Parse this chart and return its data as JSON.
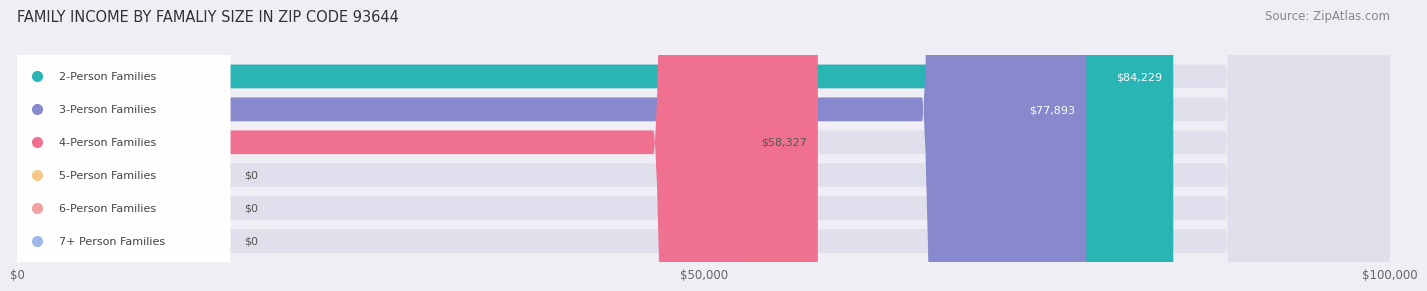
{
  "title": "FAMILY INCOME BY FAMALIY SIZE IN ZIP CODE 93644",
  "source": "Source: ZipAtlas.com",
  "categories": [
    "2-Person Families",
    "3-Person Families",
    "4-Person Families",
    "5-Person Families",
    "6-Person Families",
    "7+ Person Families"
  ],
  "values": [
    84229,
    77893,
    58327,
    0,
    0,
    0
  ],
  "bar_colors": [
    "#2ab5b5",
    "#8888cc",
    "#f07090",
    "#f5c88a",
    "#f0a0a0",
    "#a0b8e8"
  ],
  "label_colors": [
    "#ffffff",
    "#ffffff",
    "#555555",
    "#555555",
    "#555555",
    "#555555"
  ],
  "value_labels": [
    "$84,229",
    "$77,893",
    "$58,327",
    "$0",
    "$0",
    "$0"
  ],
  "xlim": [
    0,
    100000
  ],
  "xticks": [
    0,
    50000,
    100000
  ],
  "xticklabels": [
    "$0",
    "$50,000",
    "$100,000"
  ],
  "background_color": "#eeeef4",
  "bar_bg_color": "#e0e0ec",
  "title_fontsize": 10.5,
  "source_fontsize": 8.5,
  "label_fontsize": 8.0,
  "value_fontsize": 8.0
}
